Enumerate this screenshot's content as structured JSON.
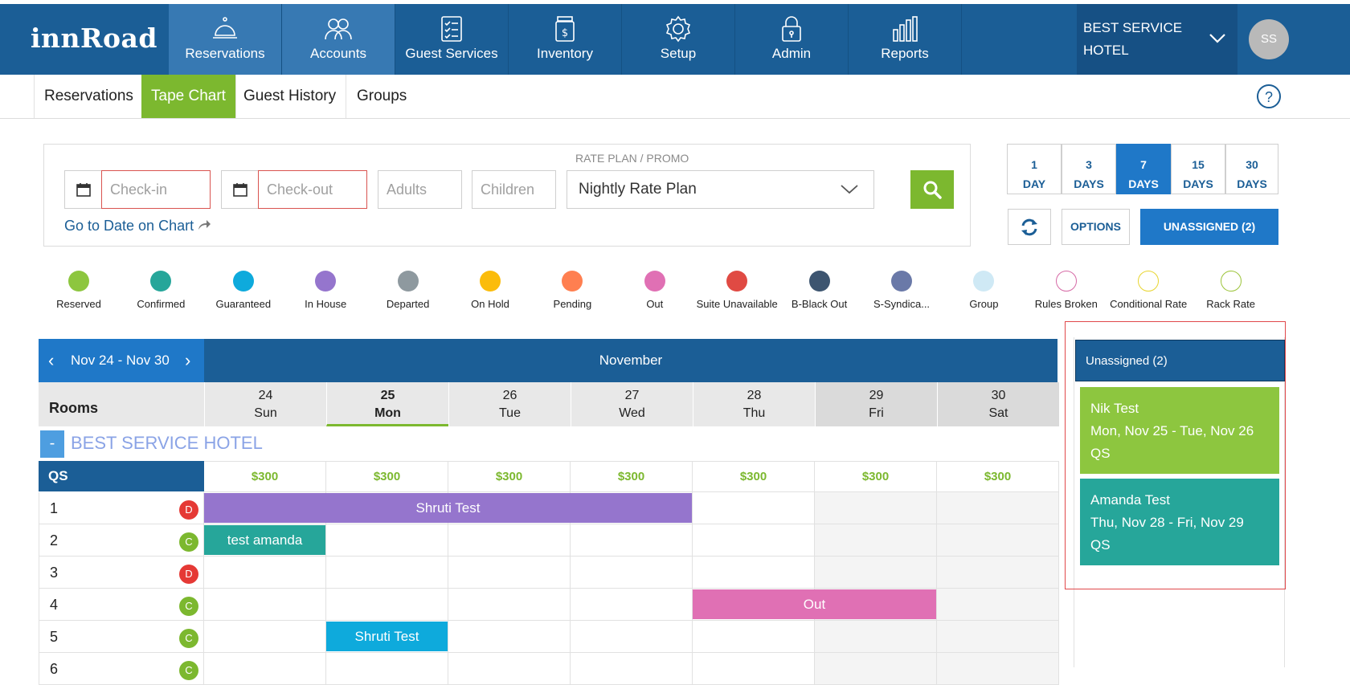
{
  "brand": {
    "logo": "innRoad"
  },
  "topnav": {
    "items": [
      {
        "label": "Reservations",
        "icon": "bell-icon"
      },
      {
        "label": "Accounts",
        "icon": "people-icon"
      },
      {
        "label": "Guest Services",
        "icon": "checklist-icon"
      },
      {
        "label": "Inventory",
        "icon": "dollar-jar-icon"
      },
      {
        "label": "Setup",
        "icon": "gear-icon"
      },
      {
        "label": "Admin",
        "icon": "lock-icon"
      },
      {
        "label": "Reports",
        "icon": "bar-chart-icon"
      }
    ],
    "hotel_selector": "BEST SERVICE HOTEL",
    "avatar_initials": "SS"
  },
  "subnav": {
    "tabs": [
      "Reservations",
      "Tape Chart",
      "Guest History",
      "Groups"
    ],
    "help": "?"
  },
  "search": {
    "checkin_placeholder": "Check-in",
    "checkout_placeholder": "Check-out",
    "adults_placeholder": "Adults",
    "children_placeholder": "Children",
    "rate_plan_label": "RATE PLAN / PROMO",
    "rate_plan_value": "Nightly Rate Plan",
    "goto_date_link": "Go to Date on Chart"
  },
  "view_range": {
    "buttons": [
      {
        "num": "1",
        "unit": "DAY"
      },
      {
        "num": "3",
        "unit": "DAYS"
      },
      {
        "num": "7",
        "unit": "DAYS"
      },
      {
        "num": "15",
        "unit": "DAYS"
      },
      {
        "num": "30",
        "unit": "DAYS"
      }
    ],
    "options_label": "OPTIONS",
    "unassigned_label": "UNASSIGNED (2)"
  },
  "legend": [
    {
      "label": "Reserved",
      "color": "#8dc63f",
      "hollow": false
    },
    {
      "label": "Confirmed",
      "color": "#26a69a",
      "hollow": false
    },
    {
      "label": "Guaranteed",
      "color": "#0eaadc",
      "hollow": false
    },
    {
      "label": "In House",
      "color": "#9575cd",
      "hollow": false
    },
    {
      "label": "Departed",
      "color": "#8e999f",
      "hollow": false
    },
    {
      "label": "On Hold",
      "color": "#fbbc0b",
      "hollow": false
    },
    {
      "label": "Pending",
      "color": "#ff7f50",
      "hollow": false
    },
    {
      "label": "Out",
      "color": "#e070b4",
      "hollow": false
    },
    {
      "label": "Suite Unavailable",
      "color": "#e04a43",
      "hollow": false
    },
    {
      "label": "B-Black Out",
      "color": "#3d5570",
      "hollow": false
    },
    {
      "label": "S-Syndica...",
      "color": "#6a79a8",
      "hollow": false
    },
    {
      "label": "Group",
      "color": "#cfe9f5",
      "hollow": false
    },
    {
      "label": "Rules Broken",
      "color": "#d66aa6",
      "hollow": true
    },
    {
      "label": "Conditional Rate",
      "color": "#e8d530",
      "hollow": true
    },
    {
      "label": "Rack Rate",
      "color": "#9cc43a",
      "hollow": true
    }
  ],
  "chart": {
    "range_label": "Nov 24 - Nov 30",
    "month": "November",
    "rooms_header": "Rooms",
    "days": [
      {
        "date": "24",
        "dow": "Sun"
      },
      {
        "date": "25",
        "dow": "Mon"
      },
      {
        "date": "26",
        "dow": "Tue"
      },
      {
        "date": "27",
        "dow": "Wed"
      },
      {
        "date": "28",
        "dow": "Thu"
      },
      {
        "date": "29",
        "dow": "Fri"
      },
      {
        "date": "30",
        "dow": "Sat"
      }
    ],
    "collapse_symbol": "-",
    "hotel_group": "BEST SERVICE HOTEL",
    "room_class": "QS",
    "rates": [
      "$300",
      "$300",
      "$300",
      "$300",
      "$300",
      "$300",
      "$300"
    ],
    "rooms": [
      {
        "number": "1",
        "status": "D",
        "status_color": "#e53935"
      },
      {
        "number": "2",
        "status": "C",
        "status_color": "#7cb82f"
      },
      {
        "number": "3",
        "status": "D",
        "status_color": "#e53935"
      },
      {
        "number": "4",
        "status": "C",
        "status_color": "#7cb82f"
      },
      {
        "number": "5",
        "status": "C",
        "status_color": "#7cb82f"
      },
      {
        "number": "6",
        "status": "C",
        "status_color": "#7cb82f"
      }
    ],
    "reservations": [
      {
        "name": "Shruti Test",
        "room_index": 0,
        "start_day": 0,
        "nights": 4,
        "color": "#9575cd"
      },
      {
        "name": "test amanda",
        "room_index": 1,
        "start_day": 0,
        "nights": 1,
        "color": "#26a69a"
      },
      {
        "name": "Out",
        "room_index": 3,
        "start_day": 4,
        "nights": 2,
        "color": "#e070b4"
      },
      {
        "name": "Shruti Test",
        "room_index": 4,
        "start_day": 1,
        "nights": 1,
        "color": "#0eaadc"
      }
    ]
  },
  "unassigned": {
    "header": "Unassigned (2)",
    "cards": [
      {
        "name": "Nik Test",
        "dates": "Mon, Nov 25 - Tue, Nov 26",
        "room_class": "QS",
        "color": "#8dc63f"
      },
      {
        "name": "Amanda Test",
        "dates": "Thu, Nov 28 - Fri, Nov 29",
        "room_class": "QS",
        "color": "#26a69a"
      }
    ]
  }
}
